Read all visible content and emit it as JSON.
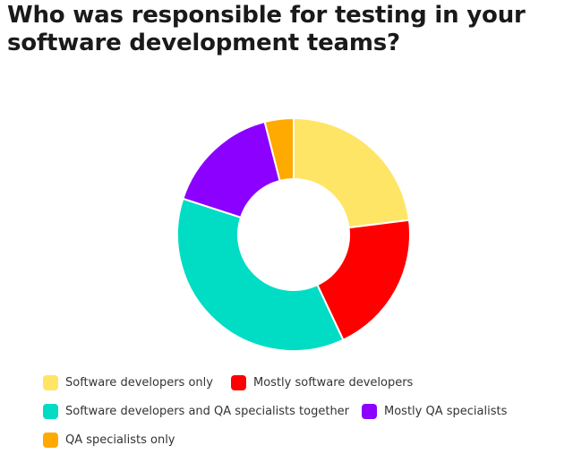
{
  "chart_data": {
    "type": "pie",
    "variant": "donut",
    "title": "Who was responsible for testing in your software development teams?",
    "categories": [
      "Software developers only",
      "Mostly software developers",
      "Software developers and QA specialists together",
      "Mostly QA specialists",
      "QA specialists only"
    ],
    "values": [
      23,
      20,
      37,
      16,
      4
    ],
    "unit": "%",
    "colors": [
      "#FFE566",
      "#FF0000",
      "#00DDC4",
      "#8B00FF",
      "#FFAA00"
    ],
    "legend_placement": "bottom"
  }
}
